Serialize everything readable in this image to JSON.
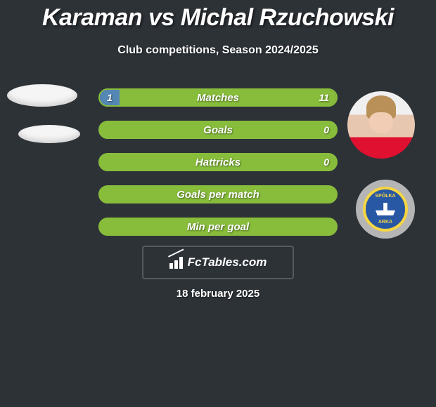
{
  "header": {
    "title_left": "Karaman",
    "title_mid": "vs",
    "title_right": "Michal Rzuchowski",
    "subtitle": "Club competitions, Season 2024/2025"
  },
  "stats": {
    "bar_border_color": "#88bd3c",
    "left_fill_color": "#5587b5",
    "right_fill_color": "#88bd3c",
    "rows": [
      {
        "label": "Matches",
        "left": "1",
        "right": "11",
        "left_pct": 8.3,
        "right_pct": 91.7,
        "show_values": true
      },
      {
        "label": "Goals",
        "left": "0",
        "right": "0",
        "left_pct": 0,
        "right_pct": 0,
        "show_values": false,
        "equal": true,
        "show_right_only": "0"
      },
      {
        "label": "Hattricks",
        "left": "0",
        "right": "0",
        "left_pct": 0,
        "right_pct": 0,
        "show_values": false,
        "equal": true,
        "show_right_only": "0"
      },
      {
        "label": "Goals per match",
        "left": "",
        "right": "",
        "left_pct": 0,
        "right_pct": 0,
        "show_values": false,
        "equal": true
      },
      {
        "label": "Min per goal",
        "left": "",
        "right": "",
        "left_pct": 0,
        "right_pct": 0,
        "show_values": false,
        "equal": true
      }
    ]
  },
  "club_logo": {
    "top_text": "SPÓŁKA",
    "bottom_text": "ARKA"
  },
  "footer": {
    "brand": "FcTables.com",
    "date": "18 february 2025"
  },
  "colors": {
    "background": "#2d3237",
    "text": "#ffffff"
  }
}
